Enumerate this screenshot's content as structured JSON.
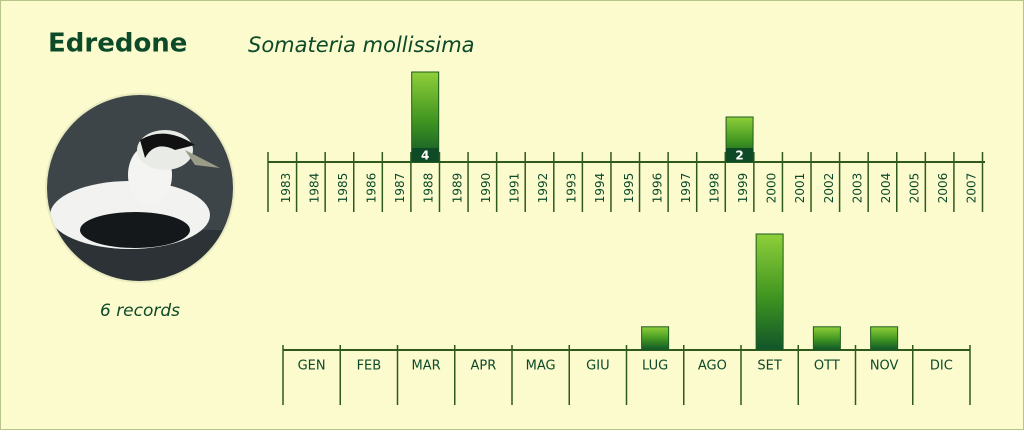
{
  "header": {
    "title": "Edredone",
    "subtitle": "Somateria mollissima"
  },
  "caption": "6 records",
  "chart_data": [
    {
      "type": "bar",
      "color": "#5aa020",
      "categories": [
        "1983",
        "1984",
        "1985",
        "1986",
        "1987",
        "1988",
        "1989",
        "1990",
        "1991",
        "1992",
        "1993",
        "1994",
        "1995",
        "1996",
        "1997",
        "1998",
        "1999",
        "2000",
        "2001",
        "2002",
        "2003",
        "2004",
        "2005",
        "2006",
        "2007"
      ],
      "values": [
        0,
        0,
        0,
        0,
        0,
        4,
        0,
        0,
        0,
        0,
        0,
        0,
        0,
        0,
        0,
        0,
        2,
        0,
        0,
        0,
        0,
        0,
        0,
        0,
        0
      ],
      "show_value_labels": true
    },
    {
      "type": "bar",
      "color": "#5aa020",
      "categories": [
        "GEN",
        "FEB",
        "MAR",
        "APR",
        "MAG",
        "GIU",
        "LUG",
        "AGO",
        "SET",
        "OTT",
        "NOV",
        "DIC"
      ],
      "values": [
        0,
        0,
        0,
        0,
        0,
        0,
        1,
        0,
        5,
        1,
        1,
        0
      ],
      "show_value_labels": false
    }
  ]
}
